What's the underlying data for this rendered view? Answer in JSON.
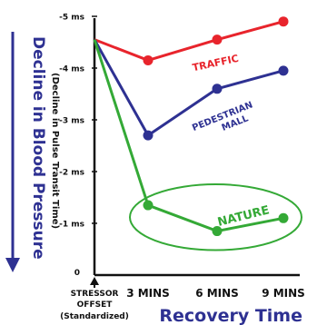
{
  "chart_data": {
    "type": "line",
    "ylabel": "Decline in Blood Pressure",
    "ylabel_sub": "(Decline in Pulse Transit Time)",
    "xlabel": "Recovery Time",
    "categories": [
      "STRESSOR OFFSET (Standardized)",
      "3 MINS",
      "6 MINS",
      "9 MINS"
    ],
    "x_tick_labels": [
      {
        "lines": [
          "STRESSOR",
          "OFFSET",
          "(Standardized)"
        ]
      },
      {
        "lines": [
          "3 MINS"
        ]
      },
      {
        "lines": [
          "6 MINS"
        ]
      },
      {
        "lines": [
          "9 MINS"
        ]
      }
    ],
    "y_ticks": [
      {
        "value": 0,
        "label": "0"
      },
      {
        "value": -1,
        "label": "-1 ms"
      },
      {
        "value": -2,
        "label": "-2 ms"
      },
      {
        "value": -3,
        "label": "-3 ms"
      },
      {
        "value": -4,
        "label": "-4 ms"
      },
      {
        "value": -5,
        "label": "-5 ms"
      }
    ],
    "ylim": [
      0,
      -5
    ],
    "y_inverted": true,
    "series": [
      {
        "name": "TRAFFIC",
        "color": "#e8242c",
        "values": [
          -4.55,
          -4.15,
          -4.55,
          -4.9
        ]
      },
      {
        "name": "PEDESTRIAN MALL",
        "color": "#2e3192",
        "values": [
          -4.55,
          -2.7,
          -3.6,
          -3.95
        ]
      },
      {
        "name": "NATURE",
        "color": "#34a936",
        "values": [
          -4.55,
          -1.35,
          -0.85,
          -1.1
        ]
      }
    ],
    "series_label_lines": {
      "TRAFFIC": [
        "TRAFFIC"
      ],
      "PEDESTRIAN MALL": [
        "PEDESTRIAN",
        "MALL"
      ],
      "NATURE": [
        "NATURE"
      ]
    },
    "highlight": {
      "series": "NATURE",
      "shape": "ellipse",
      "color": "#34a936"
    },
    "colors": {
      "axis": "#111111",
      "arrow": "#2e3192",
      "title_text": "#2e3192",
      "tick_text": "#111111"
    }
  }
}
